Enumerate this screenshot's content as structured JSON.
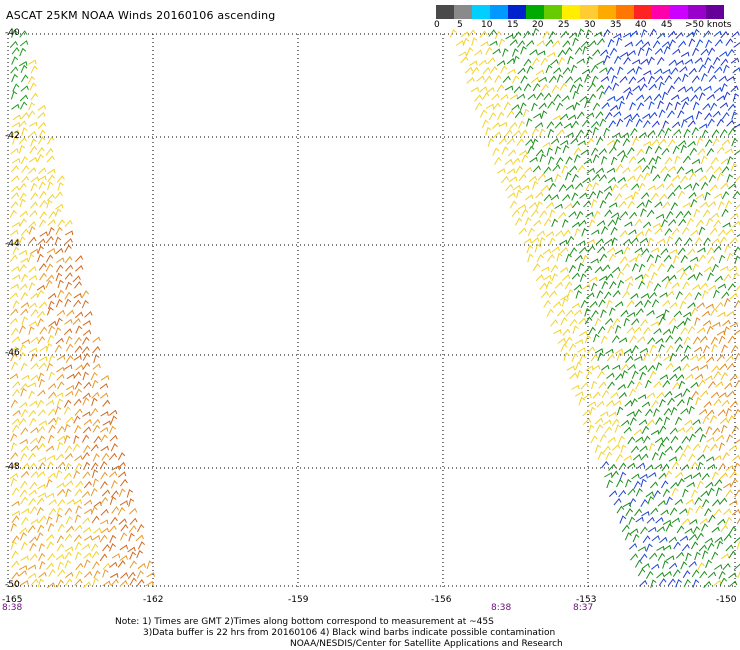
{
  "title": "ASCAT 25KM NOAA Winds 20160106 ascending",
  "colorbar": {
    "labels": [
      "0",
      "5",
      "10",
      "15",
      "20",
      "25",
      "30",
      "35",
      "40",
      "45",
      ">50 knots"
    ],
    "colors": [
      "#4a4a4a",
      "#8a8a8a",
      "#00cfff",
      "#0099ff",
      "#0022cc",
      "#00aa00",
      "#66cc00",
      "#ffee00",
      "#ffcc33",
      "#ffaa00",
      "#ff7700",
      "#ff2222",
      "#ff00aa",
      "#cc00ff",
      "#9900cc",
      "#660099"
    ]
  },
  "axes": {
    "lat_labels": [
      "-40",
      "-42",
      "-44",
      "-46",
      "-48",
      "-50"
    ],
    "lon_labels": [
      "-165",
      "-162",
      "-159",
      "-156",
      "-153",
      "-150"
    ]
  },
  "time_labels": [
    "8:38",
    "8:38",
    "8:37"
  ],
  "notes": [
    "Note: 1) Times are GMT 2)Times along bottom correspond to measurement at ~45S",
    "3)Data buffer is 22 hrs from 20160106 4) Black wind barbs indicate possible contamination",
    "NOAA/NESDIS/Center for Satellite Applications and Research"
  ]
}
